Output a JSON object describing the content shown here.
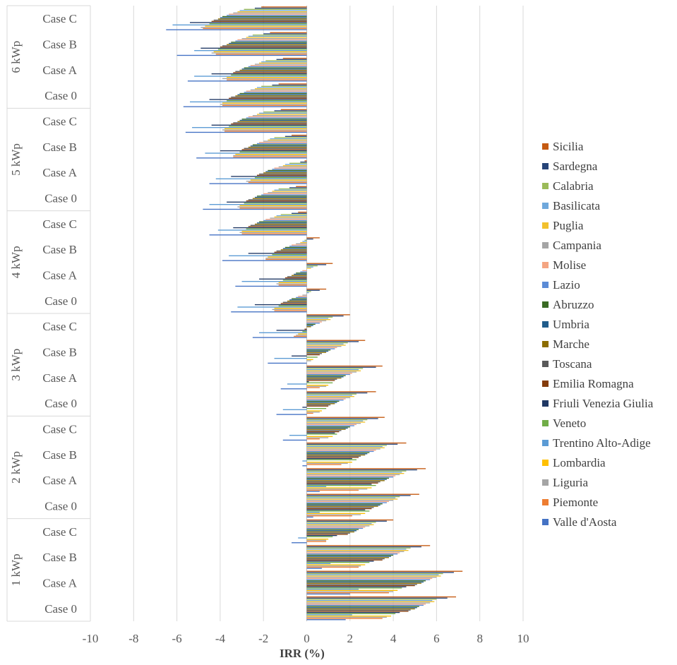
{
  "chart_data": {
    "type": "bar",
    "orientation": "horizontal",
    "xlabel": "IRR (%)",
    "xlim": [
      -10,
      10
    ],
    "xticks": [
      "-10",
      "-8",
      "-6",
      "-4",
      "-2",
      "0",
      "2",
      "4",
      "6",
      "8",
      "10"
    ],
    "grid": true,
    "legend_position": "right",
    "groups": [
      {
        "label": "6 kWp",
        "cases": [
          "Case C",
          "Case B",
          "Case A",
          "Case 0"
        ]
      },
      {
        "label": "5 kWp",
        "cases": [
          "Case C",
          "Case B",
          "Case A",
          "Case 0"
        ]
      },
      {
        "label": "4 kWp",
        "cases": [
          "Case C",
          "Case B",
          "Case A",
          "Case 0"
        ]
      },
      {
        "label": "3 kWp",
        "cases": [
          "Case C",
          "Case B",
          "Case A",
          "Case 0"
        ]
      },
      {
        "label": "2 kWp",
        "cases": [
          "Case C",
          "Case B",
          "Case A",
          "Case 0"
        ]
      },
      {
        "label": "1 kWp",
        "cases": [
          "Case C",
          "Case B",
          "Case A",
          "Case 0"
        ]
      }
    ],
    "series": [
      {
        "name": "Sicilia",
        "color": "#C55A11",
        "values": [
          -2.1,
          -1.7,
          -1.1,
          -1.3,
          -1.2,
          -0.7,
          -0.1,
          -0.5,
          -0.4,
          0.6,
          1.2,
          0.9,
          2.0,
          2.7,
          3.5,
          3.2,
          3.6,
          4.6,
          5.5,
          5.2,
          4.0,
          5.7,
          7.2,
          6.9
        ]
      },
      {
        "name": "Sardegna",
        "color": "#264478",
        "values": [
          -2.4,
          -2.0,
          -1.4,
          -1.6,
          -1.5,
          -1.0,
          -0.3,
          -0.8,
          -0.7,
          0.3,
          0.9,
          0.6,
          1.7,
          2.4,
          3.2,
          2.8,
          3.3,
          4.2,
          5.1,
          4.8,
          3.7,
          5.3,
          6.8,
          6.5
        ]
      },
      {
        "name": "Calabria",
        "color": "#9BBB59",
        "values": [
          -2.9,
          -2.5,
          -1.9,
          -2.1,
          -2.0,
          -1.5,
          -0.8,
          -1.3,
          -1.2,
          -0.1,
          0.5,
          0.2,
          1.2,
          1.9,
          2.6,
          2.3,
          2.8,
          3.7,
          4.6,
          4.3,
          3.2,
          4.8,
          6.3,
          6.0
        ]
      },
      {
        "name": "Basilicata",
        "color": "#6FA8DC",
        "values": [
          -3.1,
          -2.7,
          -2.1,
          -2.3,
          -2.2,
          -1.7,
          -1.0,
          -1.5,
          -1.4,
          -0.2,
          0.3,
          0.1,
          1.0,
          1.7,
          2.4,
          2.1,
          2.6,
          3.5,
          4.4,
          4.1,
          3.0,
          4.6,
          6.1,
          5.8
        ]
      },
      {
        "name": "Puglia",
        "color": "#F2C12E",
        "values": [
          -3.2,
          -2.8,
          -2.2,
          -2.4,
          -2.3,
          -1.8,
          -1.1,
          -1.6,
          -1.5,
          -0.3,
          0.2,
          0.0,
          1.1,
          1.8,
          2.5,
          2.2,
          2.7,
          3.6,
          4.5,
          4.2,
          3.1,
          4.7,
          6.2,
          5.9
        ]
      },
      {
        "name": "Campania",
        "color": "#A5A5A5",
        "values": [
          -3.4,
          -3.0,
          -2.4,
          -2.6,
          -2.5,
          -2.0,
          -1.3,
          -1.8,
          -1.7,
          -0.5,
          0.0,
          -0.2,
          0.9,
          1.6,
          2.3,
          2.0,
          2.5,
          3.4,
          4.3,
          4.0,
          2.9,
          4.5,
          6.0,
          5.7
        ]
      },
      {
        "name": "Molise",
        "color": "#F4A582",
        "values": [
          -3.6,
          -3.2,
          -2.6,
          -2.8,
          -2.7,
          -2.2,
          -1.5,
          -2.0,
          -1.9,
          -0.7,
          -0.2,
          -0.4,
          0.7,
          1.4,
          2.1,
          1.8,
          2.3,
          3.2,
          4.1,
          3.8,
          2.7,
          4.3,
          5.8,
          5.5
        ]
      },
      {
        "name": "Lazio",
        "color": "#5B8BD6",
        "values": [
          -3.7,
          -3.3,
          -2.7,
          -2.9,
          -2.8,
          -2.3,
          -1.6,
          -2.1,
          -2.0,
          -0.8,
          -0.3,
          -0.5,
          0.6,
          1.3,
          2.0,
          1.7,
          2.2,
          3.1,
          4.0,
          3.7,
          2.6,
          4.2,
          5.7,
          5.4
        ]
      },
      {
        "name": "Abruzzo",
        "color": "#3A6B24",
        "values": [
          -3.9,
          -3.5,
          -2.9,
          -3.1,
          -3.0,
          -2.5,
          -1.8,
          -2.3,
          -2.2,
          -1.0,
          -0.5,
          -0.7,
          0.4,
          1.1,
          1.8,
          1.5,
          2.0,
          2.9,
          3.8,
          3.5,
          2.4,
          4.0,
          5.5,
          5.2
        ]
      },
      {
        "name": "Umbria",
        "color": "#1F5C8B",
        "values": [
          -4.0,
          -3.6,
          -3.0,
          -3.2,
          -3.1,
          -2.6,
          -1.9,
          -2.4,
          -2.3,
          -1.1,
          -0.6,
          -0.8,
          0.3,
          1.0,
          1.7,
          1.4,
          1.9,
          2.8,
          3.7,
          3.4,
          2.3,
          3.9,
          5.4,
          5.1
        ]
      },
      {
        "name": "Marche",
        "color": "#8C6D00",
        "values": [
          -4.1,
          -3.7,
          -3.1,
          -3.3,
          -3.2,
          -2.7,
          -2.0,
          -2.5,
          -2.4,
          -1.2,
          -0.7,
          -0.9,
          0.2,
          0.9,
          1.6,
          1.3,
          1.8,
          2.7,
          3.6,
          3.3,
          2.2,
          3.8,
          5.3,
          5.0
        ]
      },
      {
        "name": "Toscana",
        "color": "#595959",
        "values": [
          -4.3,
          -3.9,
          -3.3,
          -3.5,
          -3.4,
          -2.9,
          -2.2,
          -2.7,
          -2.6,
          -1.4,
          -0.9,
          -1.1,
          0.0,
          0.7,
          1.4,
          1.1,
          1.6,
          2.5,
          3.4,
          3.1,
          2.0,
          3.6,
          5.1,
          4.8
        ]
      },
      {
        "name": "Emilia Romagna",
        "color": "#843C0C",
        "values": [
          -4.4,
          -4.0,
          -3.4,
          -3.6,
          -3.5,
          -3.0,
          -2.3,
          -2.8,
          -2.7,
          -1.5,
          -1.0,
          -1.2,
          -0.1,
          0.6,
          1.3,
          1.0,
          1.5,
          2.4,
          3.3,
          3.0,
          1.9,
          3.5,
          5.0,
          4.7
        ]
      },
      {
        "name": "Friuli Venezia Giulia",
        "color": "#203864",
        "values": [
          -5.4,
          -4.9,
          -4.4,
          -4.5,
          -4.4,
          -4.0,
          -3.5,
          -3.7,
          -3.4,
          -2.7,
          -2.2,
          -2.4,
          -1.4,
          -0.7,
          0.1,
          -0.2,
          1.3,
          2.1,
          3.0,
          2.7,
          1.4,
          3.1,
          4.6,
          4.3
        ]
      },
      {
        "name": "Veneto",
        "color": "#70AD47",
        "values": [
          -4.5,
          -4.1,
          -3.5,
          -3.7,
          -3.6,
          -3.1,
          -2.4,
          -2.9,
          -2.8,
          -1.6,
          -1.1,
          -1.3,
          -0.2,
          0.5,
          1.2,
          0.9,
          1.4,
          2.3,
          3.2,
          2.9,
          1.2,
          2.9,
          4.4,
          4.1
        ]
      },
      {
        "name": "Trentino Alto-Adige",
        "color": "#5B9BD5",
        "values": [
          -6.2,
          -5.2,
          -5.2,
          -5.4,
          -5.3,
          -4.7,
          -4.2,
          -4.5,
          -4.1,
          -3.6,
          -3.0,
          -3.2,
          -2.2,
          -1.5,
          -0.9,
          -1.1,
          -0.8,
          -0.2,
          0.9,
          0.6,
          -0.4,
          1.1,
          2.4,
          2.1
        ]
      },
      {
        "name": "Lombardia",
        "color": "#FFC000",
        "values": [
          -4.7,
          -4.3,
          -3.7,
          -3.9,
          -3.8,
          -3.3,
          -2.6,
          -3.1,
          -3.0,
          -1.8,
          -1.3,
          -1.5,
          -0.4,
          0.3,
          1.0,
          0.7,
          1.2,
          2.1,
          3.0,
          2.7,
          1.0,
          2.7,
          4.2,
          3.9
        ]
      },
      {
        "name": "Liguria",
        "color": "#A5A5A5",
        "values": [
          -4.9,
          -4.4,
          -3.9,
          -4.0,
          -3.9,
          -3.4,
          -2.8,
          -3.2,
          -3.1,
          -1.9,
          -1.4,
          -1.6,
          -0.5,
          0.2,
          0.9,
          0.6,
          1.0,
          1.9,
          2.8,
          2.5,
          0.9,
          2.5,
          4.0,
          3.7
        ]
      },
      {
        "name": "Piemonte",
        "color": "#ED7D31",
        "values": [
          -4.8,
          -4.2,
          -3.7,
          -3.9,
          -3.8,
          -3.4,
          -2.7,
          -3.1,
          -3.0,
          -1.9,
          -1.3,
          -1.5,
          -0.6,
          0.0,
          0.6,
          0.3,
          0.6,
          1.6,
          2.4,
          2.1,
          0.9,
          2.4,
          3.8,
          3.5
        ]
      },
      {
        "name": "Valle d'Aosta",
        "color": "#4472C4",
        "values": [
          -6.5,
          -6.0,
          -5.5,
          -5.7,
          -5.6,
          -5.1,
          -4.5,
          -4.8,
          -4.5,
          -3.9,
          -3.3,
          -3.5,
          -2.5,
          -1.8,
          -1.2,
          -1.4,
          -1.1,
          -0.2,
          0.6,
          0.3,
          -0.7,
          0.7,
          2.0,
          1.8
        ]
      }
    ]
  }
}
